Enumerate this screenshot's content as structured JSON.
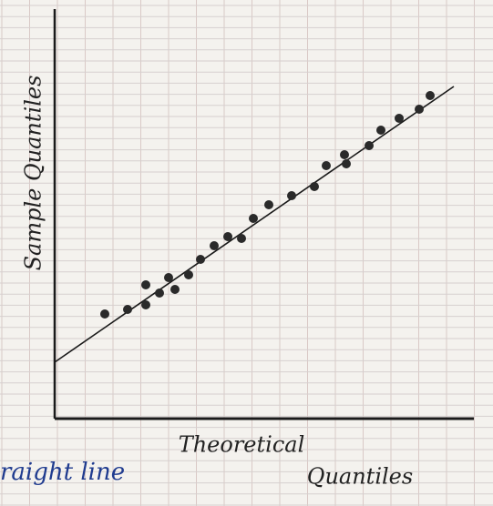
{
  "chart_data": {
    "type": "scatter",
    "ylabel": "Sample Quantiles",
    "xlabel": [
      "Theoretical",
      "Quantiles"
    ],
    "annotation": "raight line",
    "x": [
      5.5,
      8,
      10,
      10,
      11.5,
      12.5,
      13.2,
      14.7,
      16,
      17.5,
      19,
      20.5,
      21.8,
      23.5,
      26,
      28.5,
      29.8,
      31.8,
      32,
      34.5,
      35.8,
      37.8,
      40,
      41.2
    ],
    "y": [
      11.5,
      12,
      12.5,
      14.7,
      13.8,
      15.5,
      14.2,
      15.8,
      17.5,
      19,
      20,
      19.8,
      22,
      23.5,
      24.5,
      25.5,
      27.8,
      29,
      28,
      30,
      31.7,
      33,
      34,
      35.5
    ],
    "color": "#2a2a2a",
    "fit_line": {
      "x": [
        0,
        43.8
      ],
      "y": [
        6.2,
        36.5
      ],
      "color": "#1a1a1a"
    },
    "xlim": [
      0,
      46
    ],
    "ylim": [
      0,
      45
    ]
  }
}
